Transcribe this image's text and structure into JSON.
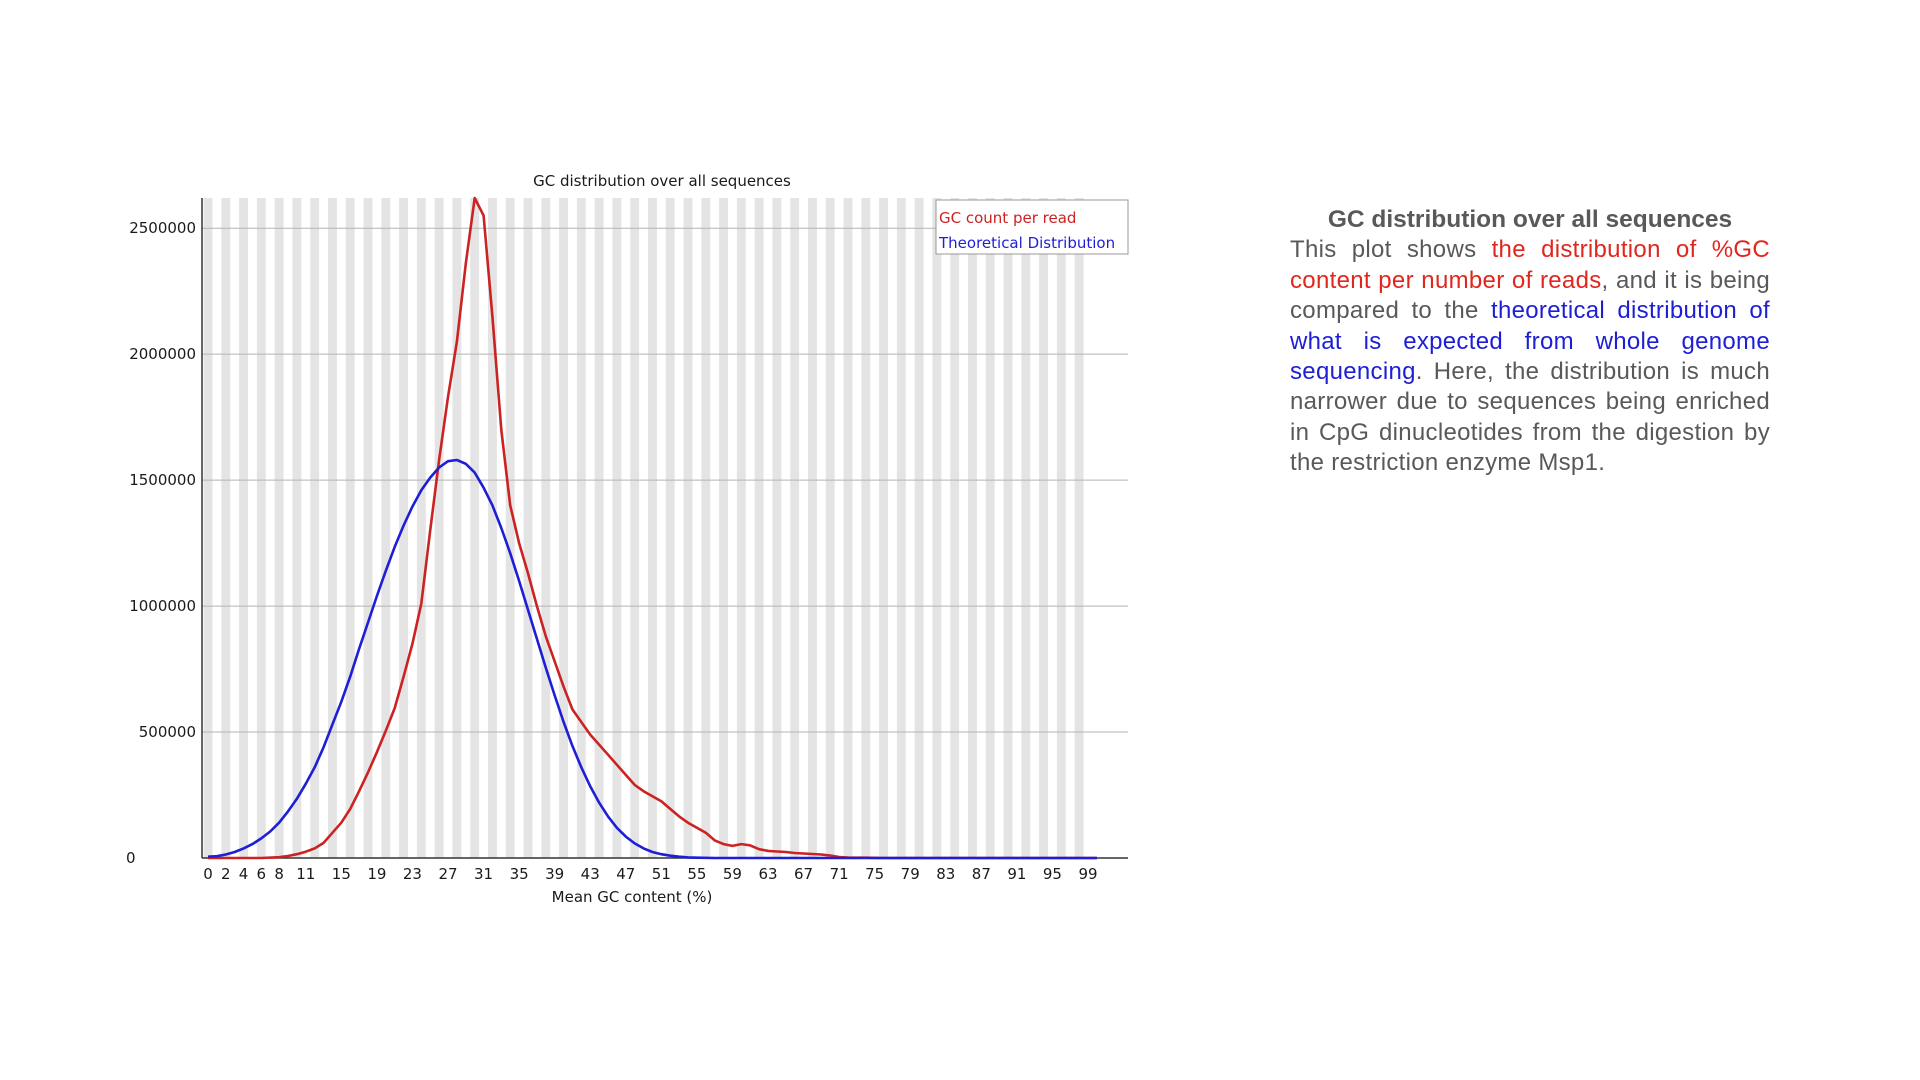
{
  "chart_data": {
    "type": "line",
    "title": "GC distribution over all sequences",
    "xlabel": "Mean GC content (%)",
    "ylabel": "",
    "xlim": [
      0,
      100
    ],
    "ylim": [
      0,
      2620000
    ],
    "grid": true,
    "legend_position": "top-right",
    "x_tick_labels": [
      "0",
      "2",
      "4",
      "6",
      "8",
      "11",
      "15",
      "19",
      "23",
      "27",
      "31",
      "35",
      "39",
      "43",
      "47",
      "51",
      "55",
      "59",
      "63",
      "67",
      "71",
      "75",
      "79",
      "83",
      "87",
      "91",
      "95",
      "99"
    ],
    "y_tick_values": [
      0,
      500000,
      1000000,
      1500000,
      2000000,
      2500000
    ],
    "y_tick_labels": [
      "0",
      "500000",
      "1000000",
      "1500000",
      "2000000",
      "2500000"
    ],
    "series": [
      {
        "name": "GC count per read",
        "color": "#cc2222",
        "points": [
          [
            0,
            0
          ],
          [
            2,
            0
          ],
          [
            4,
            0
          ],
          [
            6,
            0
          ],
          [
            8,
            3000
          ],
          [
            9,
            8000
          ],
          [
            10,
            15000
          ],
          [
            11,
            25000
          ],
          [
            12,
            38000
          ],
          [
            13,
            60000
          ],
          [
            14,
            100000
          ],
          [
            15,
            140000
          ],
          [
            16,
            195000
          ],
          [
            17,
            265000
          ],
          [
            18,
            340000
          ],
          [
            19,
            420000
          ],
          [
            20,
            505000
          ],
          [
            21,
            595000
          ],
          [
            22,
            720000
          ],
          [
            23,
            850000
          ],
          [
            24,
            1010000
          ],
          [
            25,
            1300000
          ],
          [
            26,
            1580000
          ],
          [
            27,
            1830000
          ],
          [
            28,
            2050000
          ],
          [
            29,
            2360000
          ],
          [
            30,
            2620000
          ],
          [
            31,
            2550000
          ],
          [
            32,
            2150000
          ],
          [
            33,
            1700000
          ],
          [
            34,
            1400000
          ],
          [
            35,
            1250000
          ],
          [
            36,
            1130000
          ],
          [
            37,
            1000000
          ],
          [
            38,
            880000
          ],
          [
            39,
            780000
          ],
          [
            40,
            680000
          ],
          [
            41,
            590000
          ],
          [
            42,
            540000
          ],
          [
            43,
            490000
          ],
          [
            44,
            450000
          ],
          [
            45,
            410000
          ],
          [
            46,
            370000
          ],
          [
            47,
            330000
          ],
          [
            48,
            290000
          ],
          [
            49,
            265000
          ],
          [
            50,
            245000
          ],
          [
            51,
            225000
          ],
          [
            52,
            195000
          ],
          [
            53,
            165000
          ],
          [
            54,
            140000
          ],
          [
            55,
            120000
          ],
          [
            56,
            100000
          ],
          [
            57,
            70000
          ],
          [
            58,
            55000
          ],
          [
            59,
            48000
          ],
          [
            60,
            55000
          ],
          [
            61,
            50000
          ],
          [
            62,
            35000
          ],
          [
            63,
            28000
          ],
          [
            64,
            26000
          ],
          [
            65,
            24000
          ],
          [
            66,
            20000
          ],
          [
            67,
            18000
          ],
          [
            68,
            16000
          ],
          [
            69,
            14000
          ],
          [
            70,
            10000
          ],
          [
            71,
            4000
          ],
          [
            72,
            2000
          ],
          [
            74,
            1000
          ],
          [
            76,
            0
          ],
          [
            100,
            0
          ]
        ]
      },
      {
        "name": "Theoretical Distribution",
        "color": "#1e1ed6",
        "points": [
          [
            0,
            5000
          ],
          [
            1,
            7000
          ],
          [
            2,
            14000
          ],
          [
            3,
            24000
          ],
          [
            4,
            38000
          ],
          [
            5,
            55000
          ],
          [
            6,
            78000
          ],
          [
            7,
            105000
          ],
          [
            8,
            140000
          ],
          [
            9,
            185000
          ],
          [
            10,
            235000
          ],
          [
            11,
            295000
          ],
          [
            12,
            360000
          ],
          [
            13,
            440000
          ],
          [
            14,
            530000
          ],
          [
            15,
            620000
          ],
          [
            16,
            720000
          ],
          [
            17,
            830000
          ],
          [
            18,
            935000
          ],
          [
            19,
            1040000
          ],
          [
            20,
            1140000
          ],
          [
            21,
            1235000
          ],
          [
            22,
            1320000
          ],
          [
            23,
            1395000
          ],
          [
            24,
            1460000
          ],
          [
            25,
            1510000
          ],
          [
            26,
            1550000
          ],
          [
            27,
            1575000
          ],
          [
            28,
            1580000
          ],
          [
            29,
            1565000
          ],
          [
            30,
            1530000
          ],
          [
            31,
            1470000
          ],
          [
            32,
            1400000
          ],
          [
            33,
            1310000
          ],
          [
            34,
            1210000
          ],
          [
            35,
            1100000
          ],
          [
            36,
            985000
          ],
          [
            37,
            870000
          ],
          [
            38,
            755000
          ],
          [
            39,
            645000
          ],
          [
            40,
            540000
          ],
          [
            41,
            445000
          ],
          [
            42,
            360000
          ],
          [
            43,
            285000
          ],
          [
            44,
            220000
          ],
          [
            45,
            165000
          ],
          [
            46,
            120000
          ],
          [
            47,
            85000
          ],
          [
            48,
            58000
          ],
          [
            49,
            38000
          ],
          [
            50,
            24000
          ],
          [
            51,
            15000
          ],
          [
            52,
            9000
          ],
          [
            53,
            5000
          ],
          [
            54,
            2500
          ],
          [
            55,
            1000
          ],
          [
            57,
            0
          ],
          [
            100,
            0
          ]
        ]
      }
    ]
  },
  "description": {
    "title": "GC distribution over all sequences",
    "p1": "This plot shows ",
    "p2": "the distribution of %GC content per number of reads",
    "p3": ", and it is being compared to the ",
    "p4": "theoretical distribution of what is expected from whole genome sequencing",
    "p5": ". Here, the distribution is much narrower due to sequences being enriched in CpG dinucleotides from the digestion by the restriction enzyme Msp1."
  }
}
